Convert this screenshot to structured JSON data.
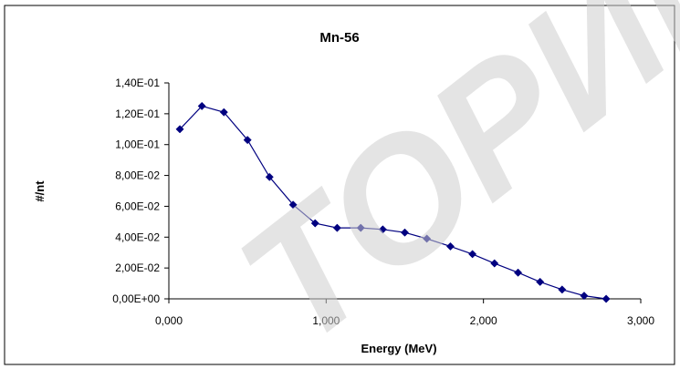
{
  "chart_data": {
    "type": "line",
    "title": "Mn-56",
    "xlabel": "Energy (MeV)",
    "ylabel": "#/nt",
    "xlim": [
      0,
      3
    ],
    "ylim": [
      0,
      0.14
    ],
    "x_ticks": [
      "0,000",
      "1,000",
      "2,000",
      "3,000"
    ],
    "y_ticks": [
      "0,00E+00",
      "2,00E-02",
      "4,00E-02",
      "6,00E-02",
      "8,00E-02",
      "1,00E-01",
      "1,20E-01",
      "1,40E-01"
    ],
    "grid": false,
    "legend": "none",
    "series": [
      {
        "color": "#000080",
        "marker": "diamond",
        "x": [
          0.07,
          0.21,
          0.35,
          0.5,
          0.64,
          0.79,
          0.93,
          1.07,
          1.22,
          1.36,
          1.5,
          1.64,
          1.79,
          1.93,
          2.07,
          2.22,
          2.36,
          2.5,
          2.64,
          2.78
        ],
        "y": [
          0.11,
          0.125,
          0.121,
          0.103,
          0.079,
          0.061,
          0.049,
          0.046,
          0.046,
          0.045,
          0.043,
          0.039,
          0.034,
          0.029,
          0.023,
          0.017,
          0.011,
          0.006,
          0.002,
          0.0
        ]
      }
    ]
  }
}
